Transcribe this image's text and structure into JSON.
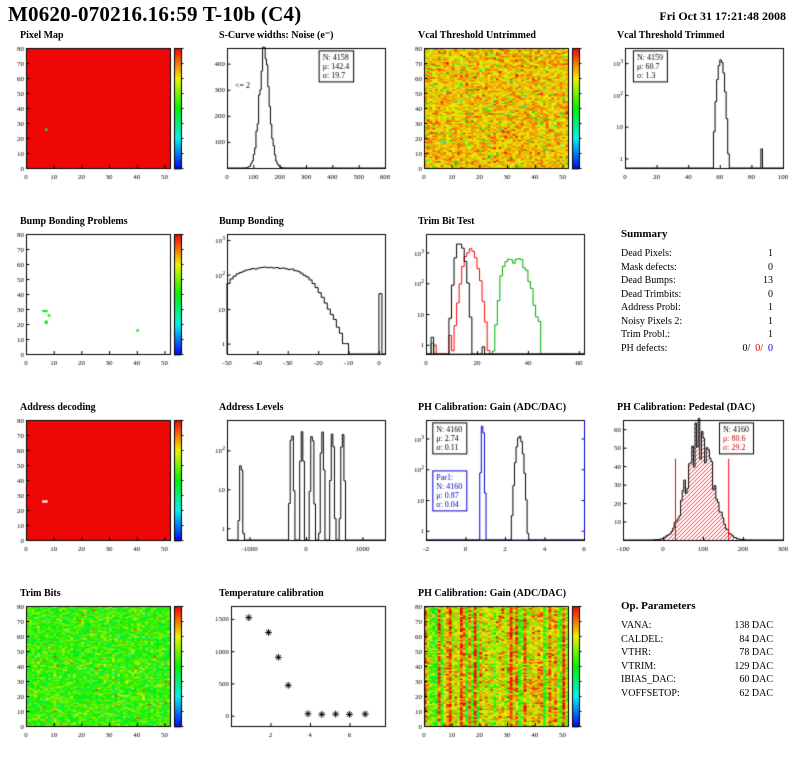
{
  "header": {
    "title": "M0620-070216.16:59 T-10b (C4)",
    "date": "Fri Oct 31 17:21:48 2008"
  },
  "summary": {
    "title": "Summary",
    "rows": [
      {
        "label": "Dead Pixels:",
        "value": "1"
      },
      {
        "label": "Mask defects:",
        "value": "0"
      },
      {
        "label": "Dead Bumps:",
        "value": "13"
      },
      {
        "label": "Dead Trimbits:",
        "value": "0"
      },
      {
        "label": "Address Probl:",
        "value": "1"
      },
      {
        "label": "Noisy Pixels 2:",
        "value": "1"
      },
      {
        "label": "Trim Probl.:",
        "value": "1"
      }
    ],
    "ph_defects": {
      "label": "PH defects:",
      "v1": "0/",
      "v2": "0/",
      "v3": "0"
    }
  },
  "op_parameters": {
    "title": "Op. Parameters",
    "rows": [
      {
        "label": "VANA:",
        "value": "138 DAC"
      },
      {
        "label": "CALDEL:",
        "value": "84 DAC"
      },
      {
        "label": "VTHR:",
        "value": "78 DAC"
      },
      {
        "label": "VTRIM:",
        "value": "129 DAC"
      },
      {
        "label": "IBIAS_DAC:",
        "value": "60 DAC"
      },
      {
        "label": "VOFFSETOP:",
        "value": "62 DAC"
      }
    ]
  },
  "chart_data": [
    {
      "id": "pixel-map",
      "type": "heatmap",
      "title": "Pixel Map",
      "x_range": [
        0,
        52
      ],
      "x_ticks": [
        0,
        10,
        20,
        30,
        40,
        50
      ],
      "y_range": [
        0,
        80
      ],
      "y_ticks": [
        0,
        10,
        20,
        30,
        40,
        50,
        60,
        70,
        80
      ],
      "ml": 22,
      "colorbar": true,
      "heatmap": {
        "nx": 52,
        "ny": 80,
        "mode": "uniform",
        "value_t": 1.0,
        "seed": 1,
        "cells": [
          {
            "x": 7,
            "y": 25,
            "t": 0.45
          }
        ]
      }
    },
    {
      "id": "scurve-noise",
      "type": "hist",
      "title": "S-Curve widths: Noise (e⁻)",
      "x_range": [
        0,
        600
      ],
      "x_ticks": [
        0,
        100,
        200,
        300,
        400,
        500,
        600
      ],
      "y_range": [
        0,
        460
      ],
      "y_ticks": [
        100,
        200,
        300,
        400
      ],
      "ml": 24,
      "series": [
        {
          "color": "#000000",
          "binw": 5,
          "noise": 0.15,
          "seed": 11,
          "gausses": [
            {
              "mean": 142.4,
              "sigma": 19.7,
              "n": 4158
            }
          ]
        }
      ],
      "stats": [
        {
          "fx": 0.58,
          "fy": 0.02,
          "border": "#000000",
          "lines": [
            {
              "t": "N: 4158",
              "c": "#000000"
            },
            {
              "t": "μ: 142.4",
              "c": "#000000"
            },
            {
              "t": "σ: 19.7",
              "c": "#000000"
            }
          ]
        }
      ],
      "annotations": [
        {
          "fx": 0.05,
          "fy": 0.33,
          "t": "<= 2",
          "c": "#000000"
        }
      ]
    },
    {
      "id": "vcal-untrimmed",
      "type": "heatmap",
      "title": "Vcal Threshold Untrimmed",
      "x_range": [
        0,
        52
      ],
      "x_ticks": [
        0,
        10,
        20,
        30,
        40,
        50
      ],
      "y_range": [
        0,
        80
      ],
      "y_ticks": [
        0,
        10,
        20,
        30,
        40,
        50,
        60,
        70,
        80
      ],
      "ml": 22,
      "colorbar": true,
      "heatmap": {
        "nx": 52,
        "ny": 80,
        "mode": "noise",
        "base_t": 0.8,
        "sd_t": 0.06,
        "outlier_p": 0.07,
        "outlier_lo": 0.3,
        "outlier_hi": 1.0,
        "seed": 42
      }
    },
    {
      "id": "vcal-trimmed",
      "type": "hist",
      "title": "Vcal Threshold Trimmed",
      "x_range": [
        0,
        100
      ],
      "x_ticks": [
        0,
        20,
        40,
        60,
        80,
        100
      ],
      "log_y": true,
      "y_range": [
        0.5,
        3000
      ],
      "ml": 24,
      "series": [
        {
          "color": "#000000",
          "binw": 1,
          "gausses": [
            {
              "mean": 60.7,
              "sigma": 1.3,
              "n": 4159
            }
          ],
          "spikes": [
            [
              86,
              2
            ]
          ]
        }
      ],
      "stats": [
        {
          "fx": 0.05,
          "fy": 0.02,
          "border": "#000000",
          "lines": [
            {
              "t": "N: 4159",
              "c": "#000000"
            },
            {
              "t": "μ: 60.7",
              "c": "#000000"
            },
            {
              "t": "σ: 1.3",
              "c": "#000000"
            }
          ]
        }
      ]
    },
    {
      "id": "bump-problems",
      "type": "heatmap",
      "title": "Bump Bonding Problems",
      "x_range": [
        0,
        52
      ],
      "x_ticks": [
        0,
        10,
        20,
        30,
        40,
        50
      ],
      "y_range": [
        0,
        80
      ],
      "y_ticks": [
        0,
        10,
        20,
        30,
        40,
        50,
        60,
        70,
        80
      ],
      "ml": 22,
      "colorbar": true,
      "heatmap": {
        "nx": 52,
        "ny": 80,
        "mode": "sparse",
        "bg": "#ffffff",
        "seed": 3,
        "cells": [
          {
            "x": 7,
            "y": 20,
            "t": 0.5
          },
          {
            "x": 7,
            "y": 21,
            "t": 0.5
          },
          {
            "x": 6,
            "y": 28,
            "t": 0.5
          },
          {
            "x": 7,
            "y": 28,
            "t": 0.5
          },
          {
            "x": 8,
            "y": 25,
            "t": 0.5
          },
          {
            "x": 40,
            "y": 15,
            "t": 0.5
          }
        ]
      }
    },
    {
      "id": "bump-bonding",
      "type": "hist",
      "title": "Bump Bonding",
      "x_range": [
        -50,
        2
      ],
      "x_ticks": [
        -50,
        -40,
        -30,
        -20,
        -10,
        0
      ],
      "log_y": true,
      "y_range": [
        0.5,
        1500
      ],
      "ml": 24,
      "series": [
        {
          "color": "#000000",
          "binw": 1,
          "counts": [
            55,
            75,
            90,
            105,
            115,
            125,
            135,
            140,
            150,
            145,
            155,
            160,
            165,
            158,
            162,
            155,
            160,
            150,
            155,
            148,
            140,
            145,
            130,
            125,
            110,
            95,
            85,
            70,
            55,
            42,
            30,
            22,
            15,
            10,
            7,
            5,
            3,
            2,
            1,
            1,
            0,
            0,
            0,
            0,
            0,
            0,
            0,
            0,
            0,
            0,
            28,
            0
          ]
        }
      ]
    },
    {
      "id": "trim-bit-test",
      "type": "hist",
      "title": "Trim Bit Test",
      "x_range": [
        0,
        62
      ],
      "x_ticks": [
        0,
        20,
        40,
        60
      ],
      "log_y": true,
      "y_range": [
        0.5,
        4000
      ],
      "ml": 24,
      "series": [
        {
          "color": "#00aa00",
          "binw": 1,
          "noise": 0.2,
          "seed": 21,
          "gausses": [
            {
              "mean": 36,
              "sigma": 2.5,
              "n": 4000
            },
            {
              "mean": 31.5,
              "sigma": 1.2,
              "n": 1500
            }
          ],
          "spikes": [
            [
              44,
              3
            ],
            [
              2,
              1
            ]
          ]
        },
        {
          "color": "#ff0000",
          "binw": 1,
          "noise": 0.2,
          "seed": 22,
          "gausses": [
            {
              "mean": 17.5,
              "sigma": 1.8,
              "n": 5500
            }
          ],
          "spikes": [
            [
              9,
              2
            ],
            [
              3,
              1
            ]
          ]
        },
        {
          "color": "#000000",
          "binw": 1,
          "noise": 0.2,
          "seed": 23,
          "gausses": [
            {
              "mean": 13.5,
              "sigma": 1.2,
              "n": 7000
            }
          ],
          "spikes": [
            [
              2,
              2
            ],
            [
              22,
              1
            ]
          ]
        }
      ]
    },
    {
      "id": "address-decoding",
      "type": "heatmap",
      "title": "Address decoding",
      "x_range": [
        0,
        52
      ],
      "x_ticks": [
        0,
        10,
        20,
        30,
        40,
        50
      ],
      "y_range": [
        0,
        80
      ],
      "y_ticks": [
        0,
        10,
        20,
        30,
        40,
        50,
        60,
        70,
        80
      ],
      "ml": 22,
      "colorbar": true,
      "heatmap": {
        "nx": 52,
        "ny": 80,
        "mode": "uniform",
        "value_t": 1.0,
        "seed": 2,
        "cells": [
          {
            "x": 6,
            "y": 25,
            "t": -1
          },
          {
            "x": 7,
            "y": 25,
            "t": -1
          }
        ]
      }
    },
    {
      "id": "address-levels",
      "type": "hist",
      "title": "Address Levels",
      "x_range": [
        -1400,
        1400
      ],
      "x_ticks": [
        -1000,
        0,
        1000
      ],
      "log_y": true,
      "y_range": [
        0.5,
        600
      ],
      "ml": 24,
      "series": [
        {
          "color": "#000000",
          "binw": 28,
          "gausses": [
            {
              "mean": -1150,
              "sigma": 15,
              "n": 74
            },
            {
              "mean": -250,
              "sigma": 15,
              "n": 430
            },
            {
              "mean": -70,
              "sigma": 15,
              "n": 403
            },
            {
              "mean": 110,
              "sigma": 15,
              "n": 416
            },
            {
              "mean": 290,
              "sigma": 15,
              "n": 410
            },
            {
              "mean": 470,
              "sigma": 15,
              "n": 403
            },
            {
              "mean": 650,
              "sigma": 15,
              "n": 396
            }
          ]
        }
      ]
    },
    {
      "id": "ph-gain",
      "type": "hist",
      "title": "PH Calibration: Gain (ADC/DAC)",
      "x_range": [
        -2,
        6
      ],
      "x_ticks": [
        -2,
        0,
        2,
        4,
        6
      ],
      "log_y": true,
      "y_range": [
        0.5,
        4000
      ],
      "ml": 24,
      "right_axis_color": "#0000cc",
      "series": [
        {
          "color": "#000000",
          "binw": 0.08,
          "gausses": [
            {
              "mean": 2.74,
              "sigma": 0.11,
              "n": 4160
            }
          ]
        },
        {
          "color": "#0000cc",
          "binw": 0.08,
          "gausses": [
            {
              "mean": 0.87,
              "sigma": 0.04,
              "n": 4160
            }
          ]
        }
      ],
      "stats": [
        {
          "fx": 0.04,
          "fy": 0.02,
          "border": "#000000",
          "lines": [
            {
              "t": "N: 4160",
              "c": "#000000"
            },
            {
              "t": "μ: 2.74",
              "c": "#000000"
            },
            {
              "t": "σ: 0.11",
              "c": "#000000"
            }
          ]
        },
        {
          "fx": 0.04,
          "fy": 0.42,
          "border": "#0000cc",
          "lines": [
            {
              "t": "Par1:",
              "c": "#0000cc"
            },
            {
              "t": "N: 4160",
              "c": "#0000cc"
            },
            {
              "t": "μ: 0.87",
              "c": "#0000cc"
            },
            {
              "t": "σ: 0.04",
              "c": "#0000cc"
            }
          ]
        }
      ]
    },
    {
      "id": "ph-pedestal",
      "type": "hist",
      "title": "PH Calibration: Pedestal (DAC)",
      "x_range": [
        -100,
        300
      ],
      "x_ticks": [
        -100,
        0,
        100,
        200,
        300
      ],
      "y_range": [
        0,
        65
      ],
      "y_ticks": [
        10,
        20,
        30,
        40,
        50,
        60
      ],
      "ml": 22,
      "series": [
        {
          "color": "#000000",
          "binw": 4,
          "noise": 0.22,
          "seed": 5,
          "fill": "#ff0000",
          "gausses": [
            {
              "mean": 92,
              "sigma": 32,
              "n": 1100
            }
          ]
        }
      ],
      "vlines": [
        {
          "x": 30,
          "y": 44,
          "c": "#ff0000"
        },
        {
          "x": 163,
          "y": 44,
          "c": "#ff0000"
        }
      ],
      "stats": [
        {
          "fx": 0.6,
          "fy": 0.02,
          "border": "#000000",
          "lines": [
            {
              "t": "N: 4160",
              "c": "#000000"
            },
            {
              "t": "μ: 80.6",
              "c": "#cc0000"
            },
            {
              "t": "σ: 29.2",
              "c": "#cc0000"
            }
          ]
        }
      ]
    },
    {
      "id": "trim-bits",
      "type": "heatmap",
      "title": "Trim Bits",
      "x_range": [
        0,
        52
      ],
      "x_ticks": [
        0,
        10,
        20,
        30,
        40,
        50
      ],
      "y_range": [
        0,
        80
      ],
      "y_ticks": [
        0,
        10,
        20,
        30,
        40,
        50,
        60,
        70,
        80
      ],
      "ml": 22,
      "colorbar": true,
      "heatmap": {
        "nx": 52,
        "ny": 80,
        "mode": "noise",
        "base_t": 0.55,
        "sd_t": 0.07,
        "outlier_p": 0.05,
        "outlier_lo": 0.3,
        "outlier_hi": 0.95,
        "seed": 99
      }
    },
    {
      "id": "temp-calibration",
      "type": "scatter",
      "title": "Temperature calibration",
      "x_range": [
        0,
        7.8
      ],
      "x_ticks": [
        2,
        4,
        6
      ],
      "y_range": [
        -160,
        1700
      ],
      "y_ticks": [
        0,
        500,
        1000,
        1500
      ],
      "ml": 28,
      "points": [
        [
          0.9,
          1520
        ],
        [
          1.9,
          1290
        ],
        [
          2.4,
          905
        ],
        [
          2.9,
          470
        ],
        [
          3.9,
          30
        ],
        [
          4.6,
          20
        ],
        [
          5.3,
          25
        ],
        [
          6.0,
          20
        ],
        [
          6.8,
          25
        ]
      ]
    },
    {
      "id": "ph-gain-map",
      "type": "heatmap",
      "title": "PH Calibration: Gain (ADC/DAC)",
      "x_range": [
        0,
        52
      ],
      "x_ticks": [
        0,
        10,
        20,
        30,
        40,
        50
      ],
      "y_range": [
        0,
        80
      ],
      "y_ticks": [
        0,
        10,
        20,
        30,
        40,
        50,
        60,
        70,
        80
      ],
      "ml": 22,
      "colorbar": true,
      "heatmap": {
        "nx": 52,
        "ny": 80,
        "mode": "stripes",
        "base_lo": 0.55,
        "base_hi": 0.95,
        "sd_t": 0.1,
        "seed": 7
      }
    }
  ]
}
